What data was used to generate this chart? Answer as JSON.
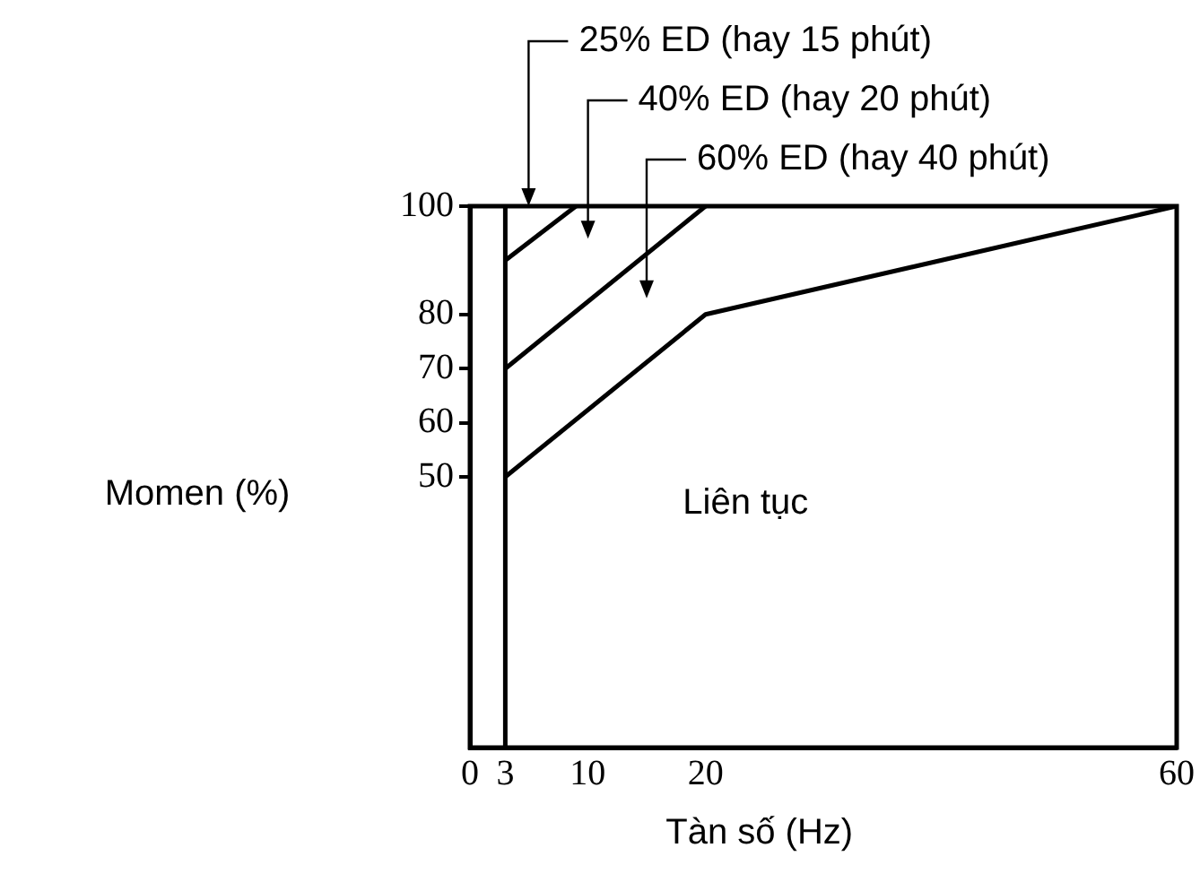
{
  "chart_data": {
    "type": "line",
    "xlabel": "Tàn số (Hz)",
    "ylabel": "Momen (%)",
    "xlim": [
      0,
      60
    ],
    "ylim": [
      0,
      100
    ],
    "xticks": [
      0,
      3,
      10,
      20,
      60
    ],
    "yticks": [
      50,
      60,
      70,
      80,
      100
    ],
    "series": [
      {
        "color": "#000000",
        "x": [
          3,
          9
        ],
        "values": [
          90,
          100
        ]
      },
      {
        "color": "#000000",
        "x": [
          3,
          20
        ],
        "values": [
          70,
          100
        ]
      },
      {
        "color": "#000000",
        "x": [
          3,
          20,
          60
        ],
        "values": [
          50,
          80,
          100
        ]
      }
    ],
    "ref_lines": [
      {
        "axis": "x",
        "value": 3,
        "color": "#000000"
      }
    ],
    "annotations": [
      "25% ED (hay 15 phút)",
      "40% ED (hay 20 phút)",
      "60% ED (hay 40 phút)",
      "Liên tục"
    ],
    "grid": false,
    "legend": false,
    "marker": "none",
    "line_style": "solid"
  }
}
